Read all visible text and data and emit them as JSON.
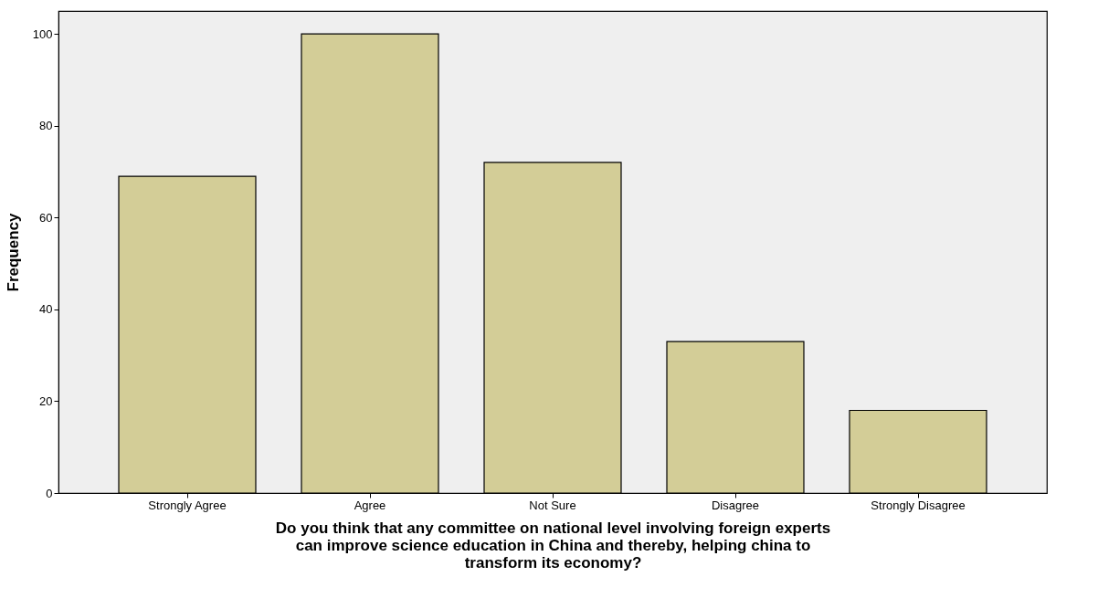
{
  "chart_data": {
    "type": "bar",
    "xlabel": "Do you think that any committee on national level involving foreign experts\ncan improve science education in China and thereby, helping china to\ntransform its economy?",
    "ylabel": "Frequency",
    "categories": [
      "Strongly Agree",
      "Agree",
      "Not Sure",
      "Disagree",
      "Strongly Disagree"
    ],
    "values": [
      69,
      100,
      72,
      33,
      18
    ],
    "color": "#d3cd97",
    "ylim": [
      0,
      105
    ],
    "yticks": [
      0,
      20,
      40,
      60,
      80,
      100
    ],
    "grid": false
  }
}
